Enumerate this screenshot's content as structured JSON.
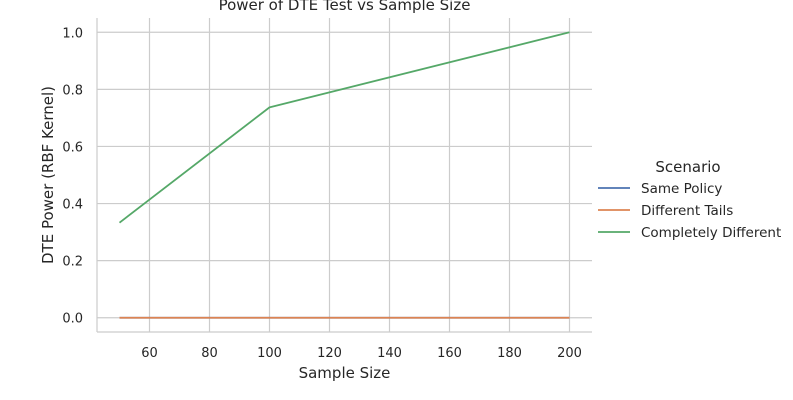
{
  "chart_data": {
    "type": "line",
    "title": "Power of DTE Test vs Sample Size",
    "xlabel": "Sample Size",
    "ylabel": "DTE Power (RBF Kernel)",
    "x": [
      50,
      100,
      200
    ],
    "xlim": [
      42.5,
      207.5
    ],
    "ylim": [
      -0.05,
      1.05
    ],
    "xticks": [
      60,
      80,
      100,
      120,
      140,
      160,
      180,
      200
    ],
    "yticks": [
      0.0,
      0.2,
      0.4,
      0.6,
      0.8,
      1.0
    ],
    "xtick_labels": [
      "60",
      "80",
      "100",
      "120",
      "140",
      "160",
      "180",
      "200"
    ],
    "ytick_labels": [
      "0.0",
      "0.2",
      "0.4",
      "0.6",
      "0.8",
      "1.0"
    ],
    "grid": true,
    "legend": {
      "title": "Scenario",
      "placement": "right"
    },
    "series": [
      {
        "name": "Same Policy",
        "values": [
          0.0,
          0.0,
          0.0
        ],
        "color": "#4c72b0"
      },
      {
        "name": "Different Tails",
        "values": [
          0.0,
          0.0,
          0.0
        ],
        "color": "#dd8452"
      },
      {
        "name": "Completely Different",
        "values": [
          0.333,
          0.737,
          1.0
        ],
        "color": "#55a868"
      }
    ]
  }
}
